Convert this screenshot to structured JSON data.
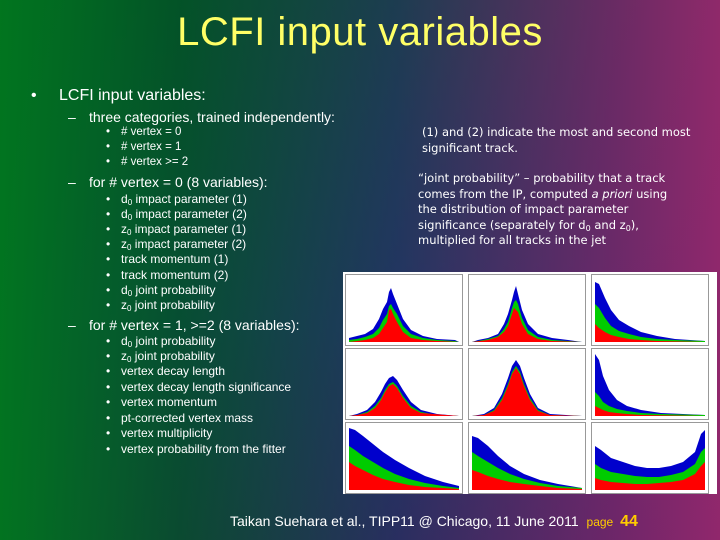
{
  "title": "LCFI input variables",
  "main": {
    "heading": "LCFI input variables:",
    "categories_intro": "three categories, trained independently:",
    "categories": [
      "# vertex = 0",
      "# vertex = 1",
      "# vertex >= 2"
    ],
    "v0_heading": "for # vertex = 0 (8 variables):",
    "v1_heading": "for # vertex = 1, >=2 (8 variables):"
  },
  "bullets": {
    "l1": "•",
    "l2": "–",
    "l3": "•"
  },
  "v0_items": {
    "a": {
      "base": "d",
      "sub": "0",
      "rest": " impact parameter (1)"
    },
    "b": {
      "base": "d",
      "sub": "0",
      "rest": " impact parameter (2)"
    },
    "c": {
      "base": "z",
      "sub": "0",
      "rest": " impact parameter (1)"
    },
    "d": {
      "base": "z",
      "sub": "0",
      "rest": " impact parameter (2)"
    },
    "e": "track momentum (1)",
    "f": "track momentum (2)",
    "g": {
      "base": "d",
      "sub": "0",
      "rest": " joint probability"
    },
    "h": {
      "base": "z",
      "sub": "0",
      "rest": " joint probability"
    }
  },
  "v1_items": {
    "a": {
      "base": "d",
      "sub": "0",
      "rest": " joint probability"
    },
    "b": {
      "base": "z",
      "sub": "0",
      "rest": " joint probability"
    },
    "c": "vertex decay length",
    "d": "vertex decay length significance",
    "e": "vertex momentum",
    "f": "pt-corrected vertex mass",
    "g": "vertex multiplicity",
    "h": "vertex probability from the fitter"
  },
  "notes": {
    "track_note": "(1) and (2) indicate the most and second most significant track.",
    "jp_1": "“joint probability” – probability that a track",
    "jp_2a": "comes from the IP, computed ",
    "jp_2b": "a priori",
    "jp_2c": " using",
    "jp_3": "the distribution of impact parameter",
    "jp_4a": "significance (separately for d",
    "jp_4b": "0",
    "jp_4c": " and z",
    "jp_4d": "0",
    "jp_4e": "),",
    "jp_5": "multiplied for all tracks in the jet"
  },
  "footer": {
    "citation": "Taikan Suehara et al., TIPP11 @ Chicago, 11 June 2011",
    "page_label": "page",
    "page_number": "44"
  },
  "colors": {
    "title": "#ffff66",
    "page_number": "#ffcc00",
    "hist_red": "#ff0000",
    "hist_green": "#00cc00",
    "hist_blue": "#0000cc"
  }
}
